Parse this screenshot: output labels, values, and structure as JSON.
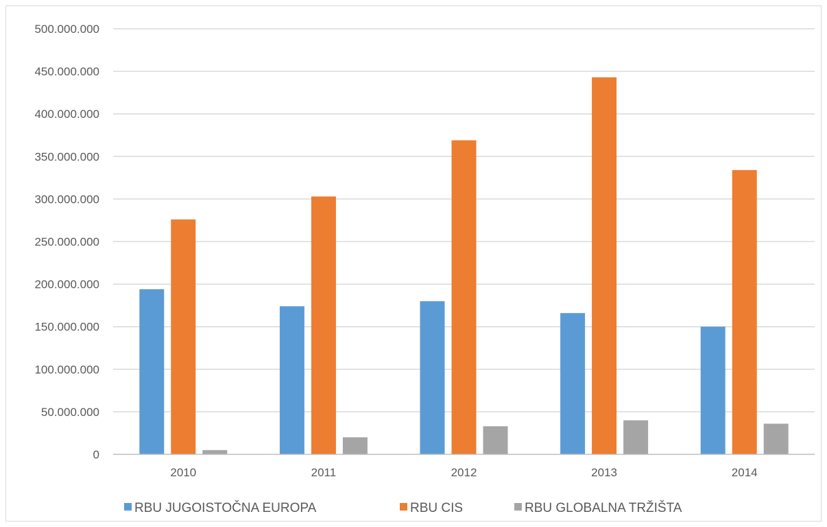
{
  "chart_data": {
    "type": "bar",
    "categories": [
      "2010",
      "2011",
      "2012",
      "2013",
      "2014"
    ],
    "series": [
      {
        "name": "RBU JUGOISTOČNA EUROPA",
        "color": "#5b9bd5",
        "values": [
          194000000,
          174000000,
          180000000,
          166000000,
          150000000
        ]
      },
      {
        "name": "RBU CIS",
        "color": "#ed7d31",
        "values": [
          276000000,
          303000000,
          369000000,
          443000000,
          334000000
        ]
      },
      {
        "name": "RBU GLOBALNA TRŽIŠTA",
        "color": "#a5a5a5",
        "values": [
          5000000,
          20000000,
          33000000,
          40000000,
          36000000
        ]
      }
    ],
    "y_ticks": [
      "0",
      "50.000.000",
      "100.000.000",
      "150.000.000",
      "200.000.000",
      "250.000.000",
      "300.000.000",
      "350.000.000",
      "400.000.000",
      "450.000.000",
      "500.000.000"
    ],
    "ylim": [
      0,
      500000000
    ],
    "y_step": 50000000,
    "grid": true,
    "legend_position": "bottom",
    "title": "",
    "xlabel": "",
    "ylabel": ""
  }
}
